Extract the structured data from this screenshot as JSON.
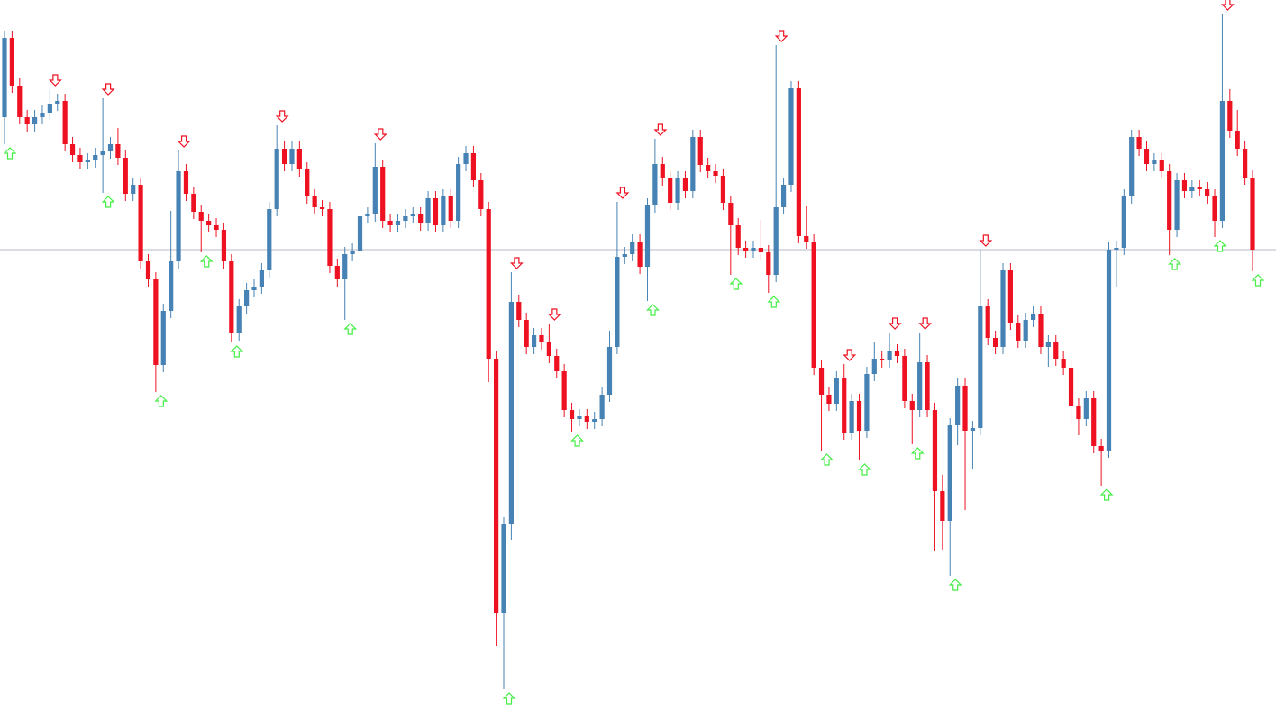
{
  "chart_data": {
    "type": "candlestick",
    "ylim": [
      0,
      789
    ],
    "up_color": "#4682b4",
    "down_color": "#ee1122",
    "fractal_up_color": "#44ee44",
    "fractal_down_color": "#ee1122",
    "hline": {
      "value": 512,
      "color": "#b8b8c8"
    },
    "candles": [
      [
        659,
        755,
        629,
        747
      ],
      [
        747,
        755,
        686,
        694
      ],
      [
        694,
        702,
        651,
        659
      ],
      [
        659,
        667,
        643,
        651
      ],
      [
        651,
        667,
        643,
        659
      ],
      [
        659,
        672,
        651,
        664
      ],
      [
        664,
        690,
        656,
        674
      ],
      [
        674,
        685,
        666,
        677
      ],
      [
        677,
        685,
        621,
        629
      ],
      [
        629,
        637,
        609,
        617
      ],
      [
        617,
        625,
        601,
        609
      ],
      [
        609,
        619,
        601,
        611
      ],
      [
        611,
        625,
        603,
        617
      ],
      [
        617,
        680,
        575,
        621
      ],
      [
        621,
        637,
        613,
        629
      ],
      [
        629,
        647,
        606,
        614
      ],
      [
        614,
        622,
        566,
        574
      ],
      [
        574,
        592,
        566,
        584
      ],
      [
        584,
        592,
        491,
        499
      ],
      [
        499,
        507,
        471,
        479
      ],
      [
        479,
        487,
        354,
        384
      ],
      [
        384,
        452,
        376,
        444
      ],
      [
        444,
        555,
        436,
        499
      ],
      [
        499,
        622,
        491,
        599
      ],
      [
        599,
        607,
        566,
        574
      ],
      [
        574,
        582,
        546,
        554
      ],
      [
        554,
        562,
        509,
        544
      ],
      [
        544,
        552,
        531,
        539
      ],
      [
        539,
        547,
        526,
        534
      ],
      [
        534,
        542,
        491,
        499
      ],
      [
        499,
        507,
        409,
        419
      ],
      [
        419,
        457,
        411,
        449
      ],
      [
        449,
        475,
        441,
        467
      ],
      [
        467,
        479,
        459,
        471
      ],
      [
        471,
        497,
        463,
        489
      ],
      [
        489,
        565,
        481,
        557
      ],
      [
        557,
        650,
        549,
        624
      ],
      [
        624,
        632,
        599,
        607
      ],
      [
        607,
        632,
        599,
        624
      ],
      [
        624,
        632,
        593,
        601
      ],
      [
        601,
        609,
        563,
        571
      ],
      [
        571,
        579,
        551,
        559
      ],
      [
        559,
        567,
        549,
        557
      ],
      [
        557,
        565,
        486,
        494
      ],
      [
        494,
        502,
        471,
        479
      ],
      [
        479,
        515,
        434,
        507
      ],
      [
        507,
        519,
        499,
        511
      ],
      [
        511,
        557,
        503,
        549
      ],
      [
        549,
        559,
        541,
        551
      ],
      [
        551,
        630,
        543,
        604
      ],
      [
        604,
        612,
        536,
        544
      ],
      [
        544,
        552,
        531,
        539
      ],
      [
        539,
        552,
        531,
        544
      ],
      [
        544,
        557,
        536,
        549
      ],
      [
        549,
        559,
        541,
        551
      ],
      [
        551,
        559,
        533,
        541
      ],
      [
        541,
        577,
        533,
        569
      ],
      [
        569,
        577,
        531,
        539
      ],
      [
        539,
        579,
        531,
        571
      ],
      [
        571,
        579,
        536,
        544
      ],
      [
        544,
        615,
        536,
        607
      ],
      [
        607,
        627,
        599,
        619
      ],
      [
        619,
        627,
        581,
        589
      ],
      [
        589,
        597,
        549,
        557
      ],
      [
        557,
        565,
        365,
        391
      ],
      [
        391,
        399,
        72,
        109
      ],
      [
        109,
        215,
        24,
        207
      ],
      [
        207,
        487,
        190,
        454
      ],
      [
        454,
        462,
        426,
        434
      ],
      [
        434,
        442,
        396,
        404
      ],
      [
        404,
        425,
        396,
        417
      ],
      [
        417,
        425,
        401,
        409
      ],
      [
        409,
        430,
        386,
        394
      ],
      [
        394,
        402,
        369,
        377
      ],
      [
        377,
        385,
        326,
        334
      ],
      [
        334,
        342,
        310,
        324
      ],
      [
        324,
        335,
        316,
        327
      ],
      [
        327,
        335,
        313,
        321
      ],
      [
        321,
        332,
        313,
        324
      ],
      [
        324,
        359,
        316,
        351
      ],
      [
        351,
        422,
        343,
        404
      ],
      [
        404,
        565,
        396,
        504
      ],
      [
        504,
        515,
        496,
        507
      ],
      [
        507,
        529,
        499,
        521
      ],
      [
        521,
        529,
        485,
        493
      ],
      [
        493,
        569,
        455,
        561
      ],
      [
        561,
        635,
        553,
        607
      ],
      [
        607,
        615,
        583,
        591
      ],
      [
        591,
        599,
        556,
        564
      ],
      [
        564,
        599,
        556,
        591
      ],
      [
        591,
        599,
        569,
        577
      ],
      [
        577,
        645,
        569,
        637
      ],
      [
        637,
        645,
        598,
        606
      ],
      [
        606,
        614,
        591,
        599
      ],
      [
        599,
        607,
        586,
        594
      ],
      [
        594,
        602,
        556,
        564
      ],
      [
        564,
        572,
        484,
        539
      ],
      [
        539,
        547,
        506,
        514
      ],
      [
        514,
        522,
        503,
        511
      ],
      [
        511,
        522,
        503,
        514
      ],
      [
        514,
        545,
        501,
        509
      ],
      [
        509,
        517,
        464,
        484
      ],
      [
        484,
        739,
        476,
        559
      ],
      [
        559,
        592,
        551,
        584
      ],
      [
        584,
        699,
        576,
        691
      ],
      [
        691,
        699,
        519,
        527
      ],
      [
        527,
        560,
        513,
        521
      ],
      [
        521,
        529,
        373,
        381
      ],
      [
        381,
        389,
        289,
        351
      ],
      [
        351,
        359,
        333,
        341
      ],
      [
        341,
        377,
        333,
        369
      ],
      [
        369,
        385,
        301,
        309
      ],
      [
        309,
        352,
        301,
        344
      ],
      [
        344,
        352,
        278,
        311
      ],
      [
        311,
        382,
        303,
        374
      ],
      [
        374,
        410,
        366,
        391
      ],
      [
        391,
        399,
        381,
        389
      ],
      [
        389,
        420,
        381,
        399
      ],
      [
        399,
        407,
        386,
        394
      ],
      [
        394,
        402,
        336,
        344
      ],
      [
        344,
        352,
        296,
        334
      ],
      [
        334,
        420,
        326,
        387
      ],
      [
        387,
        395,
        326,
        334
      ],
      [
        334,
        342,
        178,
        244
      ],
      [
        244,
        262,
        179,
        211
      ],
      [
        211,
        325,
        150,
        317
      ],
      [
        317,
        369,
        295,
        361
      ],
      [
        361,
        369,
        223,
        311
      ],
      [
        311,
        322,
        268,
        314
      ],
      [
        314,
        512,
        306,
        449
      ],
      [
        449,
        457,
        406,
        414
      ],
      [
        414,
        422,
        396,
        404
      ],
      [
        404,
        497,
        396,
        489
      ],
      [
        489,
        497,
        423,
        431
      ],
      [
        431,
        439,
        403,
        411
      ],
      [
        411,
        442,
        403,
        434
      ],
      [
        434,
        449,
        426,
        441
      ],
      [
        441,
        449,
        396,
        404
      ],
      [
        404,
        417,
        382,
        409
      ],
      [
        409,
        417,
        383,
        391
      ],
      [
        391,
        399,
        373,
        381
      ],
      [
        381,
        389,
        319,
        339
      ],
      [
        339,
        347,
        306,
        324
      ],
      [
        324,
        355,
        316,
        347
      ],
      [
        347,
        355,
        286,
        294
      ],
      [
        294,
        302,
        250,
        289
      ],
      [
        289,
        520,
        281,
        512
      ],
      [
        512,
        522,
        470,
        514
      ],
      [
        514,
        579,
        506,
        571
      ],
      [
        571,
        645,
        563,
        637
      ],
      [
        637,
        645,
        616,
        624
      ],
      [
        624,
        632,
        599,
        607
      ],
      [
        607,
        619,
        599,
        611
      ],
      [
        611,
        619,
        591,
        599
      ],
      [
        599,
        607,
        506,
        534
      ],
      [
        534,
        597,
        526,
        589
      ],
      [
        589,
        597,
        569,
        577
      ],
      [
        577,
        589,
        569,
        581
      ],
      [
        581,
        589,
        571,
        579
      ],
      [
        579,
        587,
        563,
        571
      ],
      [
        571,
        579,
        526,
        544
      ],
      [
        544,
        774,
        536,
        677
      ],
      [
        677,
        690,
        636,
        644
      ],
      [
        644,
        667,
        616,
        624
      ],
      [
        624,
        632,
        584,
        592
      ],
      [
        592,
        600,
        488,
        512
      ]
    ]
  }
}
